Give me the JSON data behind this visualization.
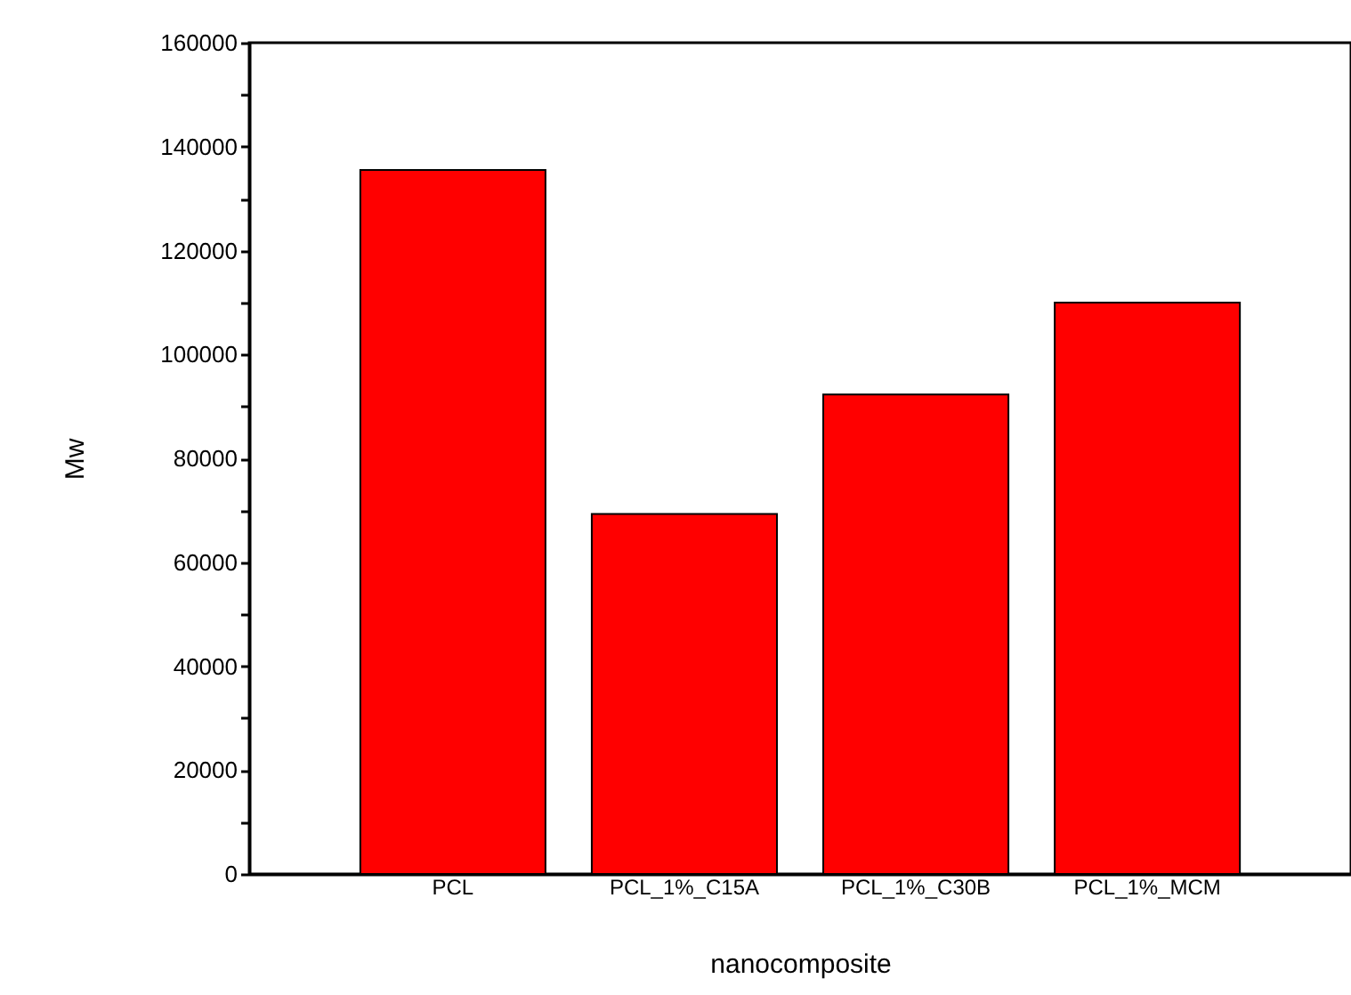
{
  "chart_data": {
    "type": "bar",
    "xlabel": "nanocomposite",
    "ylabel": "Mw",
    "categories": [
      "PCL",
      "PCL_1%_C15A",
      "PCL_1%_C30B",
      "PCL_1%_MCM"
    ],
    "values": [
      135500,
      69300,
      92300,
      110000
    ],
    "color": "#ff0000",
    "ylim": [
      0,
      160000
    ],
    "yticks": [
      0,
      {
        "value": 10000,
        "label": null
      },
      20000,
      {
        "value": 30000,
        "label": null
      },
      40000,
      {
        "value": 50000,
        "label": null
      },
      60000,
      {
        "value": 70000,
        "label": null
      },
      80000,
      {
        "value": 90000,
        "label": null
      },
      100000,
      {
        "value": 110000,
        "label": null
      },
      120000,
      {
        "value": 130000,
        "label": null
      },
      140000,
      {
        "value": 150000,
        "label": null
      },
      160000
    ],
    "grid": false
  }
}
